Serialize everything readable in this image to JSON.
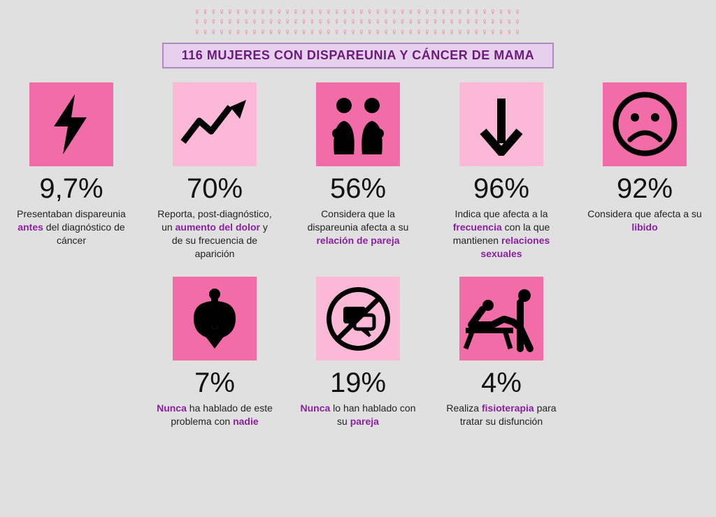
{
  "title": "116 MUJERES CON DISPAREUNIA Y CÁNCER DE MAMA",
  "people_rows": 3,
  "people_per_row": 40,
  "people_glyph": "♀",
  "colors": {
    "background": "#e0e0e0",
    "icon_dark": "#f26ca7",
    "icon_light": "#fcb8d7",
    "title_bg": "#e6d0ee",
    "title_border": "#b288c0",
    "title_text": "#6a1b7b",
    "highlight": "#8a1fa0",
    "pct_text": "#111111",
    "desc_text": "#222222",
    "icon_stroke": "#000000"
  },
  "stats_row1": [
    {
      "id": "bolt",
      "bg": "dark",
      "pct": "9,7%",
      "desc_pre": "Presentaban dispareunia ",
      "desc_hl": "antes",
      "desc_post": " del diagnóstico de cáncer"
    },
    {
      "id": "trend",
      "bg": "light",
      "pct": "70%",
      "desc_pre": "Reporta, post-diagnóstico, un ",
      "desc_hl": "aumento del dolor",
      "desc_post": " y de su frecuencia de aparición"
    },
    {
      "id": "couple",
      "bg": "dark",
      "pct": "56%",
      "desc_pre": "Considera que la dispareunia afecta a su ",
      "desc_hl": "relación de pareja",
      "desc_post": ""
    },
    {
      "id": "down",
      "bg": "light",
      "pct": "96%",
      "desc_pre": "Indica que afecta a la ",
      "desc_hl": "frecuencia",
      "desc_mid": " con la que mantienen ",
      "desc_hl2": "relaciones sexuales",
      "desc_post": ""
    },
    {
      "id": "sad",
      "bg": "dark",
      "pct": "92%",
      "desc_pre": "Considera que afecta a su ",
      "desc_hl": "libido",
      "desc_post": ""
    }
  ],
  "stats_row2": [
    {
      "id": "silence",
      "bg": "dark",
      "pct": "7%",
      "desc_hl": "Nunca",
      "desc_mid": " ha hablado de este problema con ",
      "desc_hl2": "nadie",
      "desc_pre": "",
      "desc_post": ""
    },
    {
      "id": "nochat",
      "bg": "light",
      "pct": "19%",
      "desc_hl": "Nunca",
      "desc_mid": " lo han hablado con su ",
      "desc_hl2": "pareja",
      "desc_pre": "",
      "desc_post": ""
    },
    {
      "id": "physio",
      "bg": "dark",
      "pct": "4%",
      "desc_pre": "Realiza ",
      "desc_hl": "fisioterapia",
      "desc_post": " para tratar su disfunción"
    }
  ]
}
